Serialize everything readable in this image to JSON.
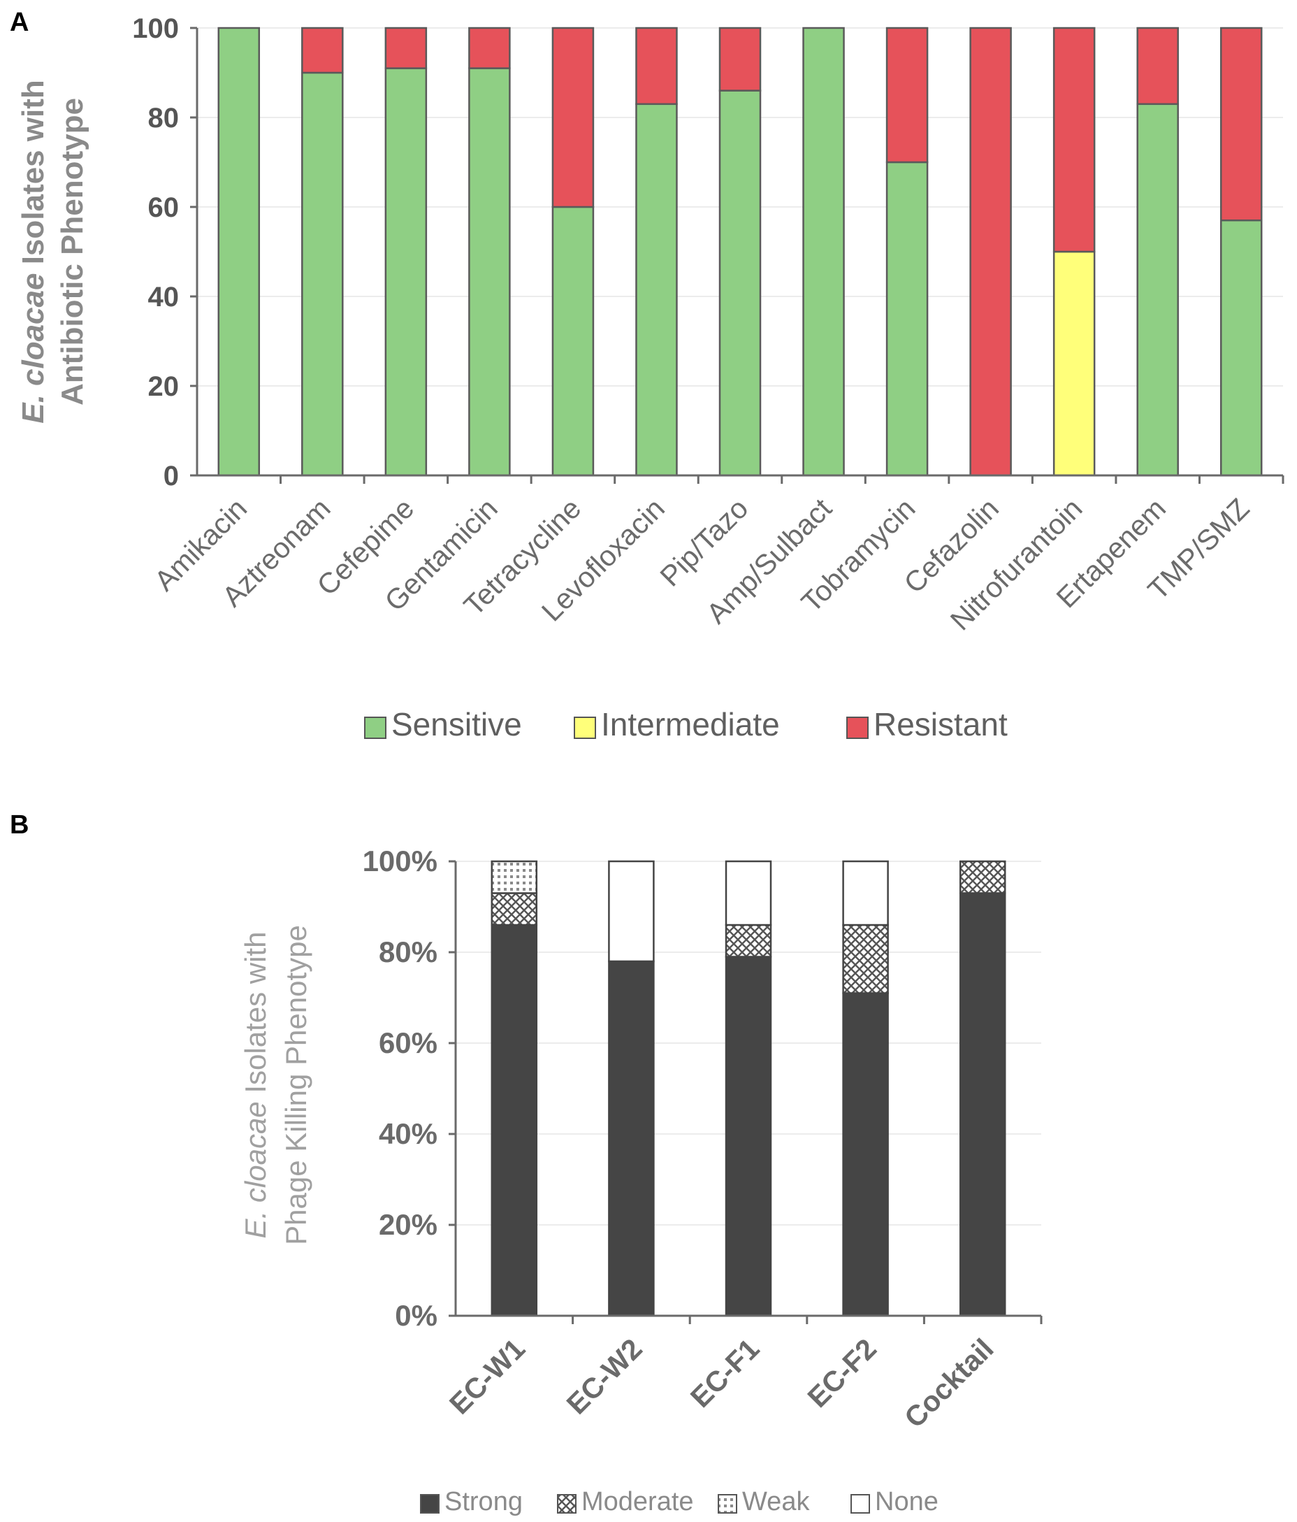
{
  "chart_data": [
    {
      "panel": "A",
      "type": "bar",
      "stacked": true,
      "ylabel_italic": "E. cloacae",
      "ylabel_rest": " Isolates with",
      "ylabel_line2": "Antibiotic Phenotype",
      "ylim": [
        0,
        100
      ],
      "yticks": [
        "0",
        "20",
        "40",
        "60",
        "80",
        "100"
      ],
      "categories": [
        "Amikacin",
        "Aztreonam",
        "Cefepime",
        "Gentamicin",
        "Tetracycline",
        "Levofloxacin",
        "Pip/Tazo",
        "Amp/Sulbact",
        "Tobramycin",
        "Cefazolin",
        "Nitrofurantoin",
        "Ertapenem",
        "TMP/SMZ"
      ],
      "series": [
        {
          "name": "Sensitive",
          "color": "#8fcf84",
          "values": [
            100,
            90,
            91,
            91,
            60,
            83,
            86,
            100,
            70,
            0,
            0,
            83,
            57
          ]
        },
        {
          "name": "Intermediate",
          "color": "#ffff7a",
          "values": [
            0,
            0,
            0,
            0,
            0,
            0,
            0,
            0,
            0,
            0,
            50,
            0,
            0
          ]
        },
        {
          "name": "Resistant",
          "color": "#e6525a",
          "values": [
            0,
            10,
            9,
            9,
            40,
            17,
            14,
            0,
            30,
            100,
            50,
            17,
            43
          ]
        }
      ],
      "legend": [
        "Sensitive",
        "Intermediate",
        "Resistant"
      ]
    },
    {
      "panel": "B",
      "type": "bar",
      "stacked": true,
      "ylabel_italic": "E. cloacae",
      "ylabel_rest": " Isolates with",
      "ylabel_line2": "Phage Killing Phenotype",
      "ylim": [
        0,
        100
      ],
      "yticks": [
        "0%",
        "20%",
        "40%",
        "60%",
        "80%",
        "100%"
      ],
      "categories": [
        "EC-W1",
        "EC-W2",
        "EC-F1",
        "EC-F2",
        "Cocktail"
      ],
      "series": [
        {
          "name": "Strong",
          "color": "#454545",
          "values": [
            86,
            78,
            79,
            71,
            93
          ]
        },
        {
          "name": "Moderate",
          "color": "crosshatch",
          "values": [
            7,
            0,
            7,
            15,
            7
          ]
        },
        {
          "name": "Weak",
          "color": "dots",
          "values": [
            7,
            0,
            0,
            0,
            0
          ]
        },
        {
          "name": "None",
          "color": "#ffffff",
          "values": [
            0,
            22,
            14,
            14,
            0
          ]
        }
      ],
      "legend": [
        "Strong",
        "Moderate",
        "Weak",
        "None"
      ]
    }
  ]
}
